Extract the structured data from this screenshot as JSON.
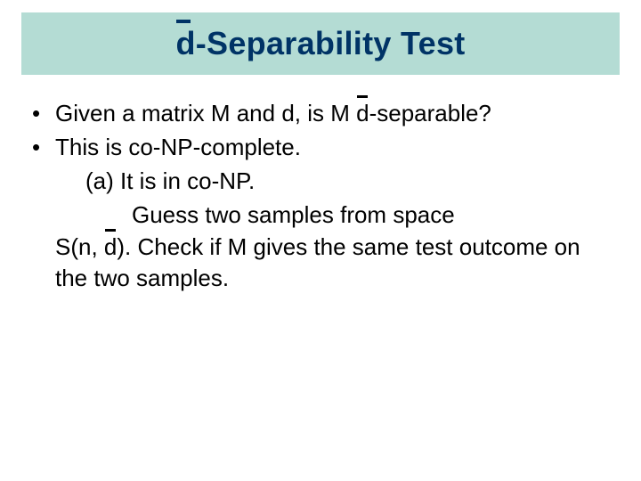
{
  "title": {
    "d_char": "d",
    "rest": "-Separability Test",
    "bar_background": "#b4dcd4",
    "text_color": "#003366"
  },
  "content": {
    "text_color": "#000000",
    "bullet_char": "•",
    "items": [
      {
        "pre": "Given a matrix M and d, is M ",
        "d_char": "d",
        "post": "-separable?"
      },
      {
        "text": "This is co-NP-complete."
      }
    ],
    "sub_a_label": "(a) It is in co-NP.",
    "guess_line": "Guess two samples from space",
    "cont_pre": "S(n, ",
    "cont_d": "d",
    "cont_post": "). Check if M gives the same test outcome on the two samples."
  }
}
